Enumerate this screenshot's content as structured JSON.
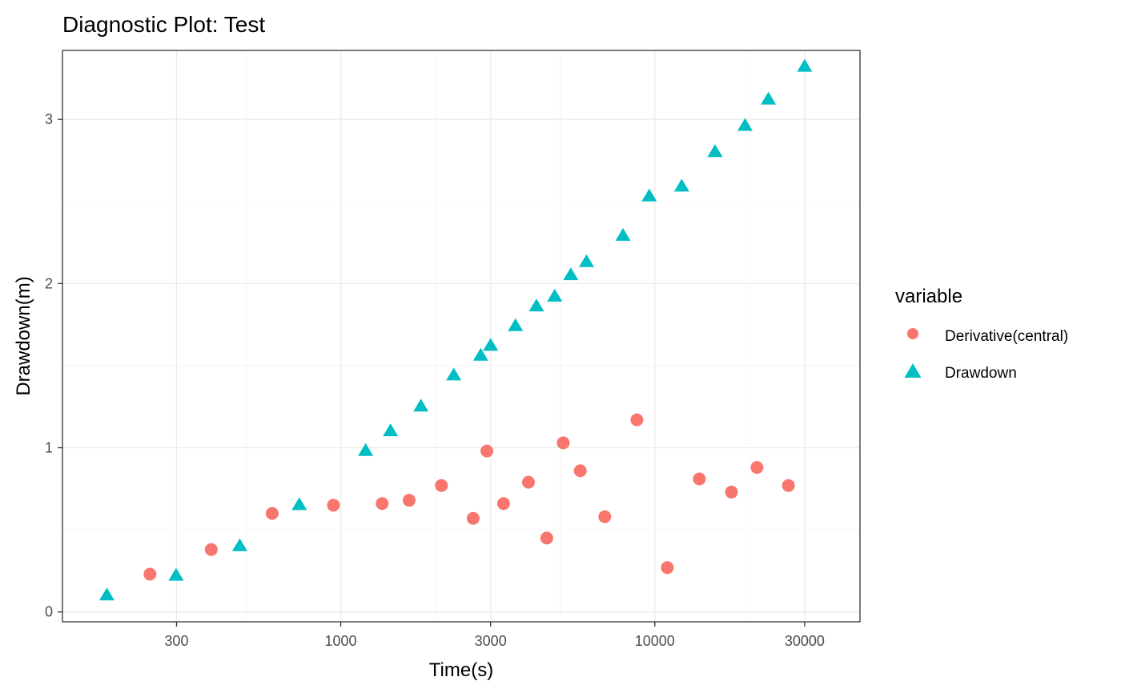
{
  "chart_data": {
    "type": "scatter",
    "title": "Diagnostic Plot: Test",
    "xlabel": "Time(s)",
    "ylabel": "Drawdown(m)",
    "xscale": "log",
    "xlim": [
      130,
      45000
    ],
    "ylim": [
      -0.06,
      3.42
    ],
    "x_ticks": [
      300,
      1000,
      3000,
      10000,
      30000
    ],
    "x_tick_labels": [
      "300",
      "1000",
      "3000",
      "10000",
      "30000"
    ],
    "y_ticks": [
      0,
      1,
      2,
      3
    ],
    "y_tick_labels": [
      "0",
      "1",
      "2",
      "3"
    ],
    "x_minor_ticks": [
      500,
      2000,
      5000,
      20000
    ],
    "y_minor_ticks": [
      0.5,
      1.5,
      2.5
    ],
    "grid": true,
    "legend": {
      "title": "variable",
      "position": "right"
    },
    "series": [
      {
        "name": "Derivative(central)",
        "marker": "circle",
        "color": "#F8766D",
        "points": [
          [
            247,
            0.23
          ],
          [
            387,
            0.38
          ],
          [
            605,
            0.6
          ],
          [
            948,
            0.65
          ],
          [
            1355,
            0.66
          ],
          [
            1651,
            0.68
          ],
          [
            2092,
            0.77
          ],
          [
            2640,
            0.57
          ],
          [
            2919,
            0.98
          ],
          [
            3300,
            0.66
          ],
          [
            3960,
            0.79
          ],
          [
            4530,
            0.45
          ],
          [
            5110,
            1.03
          ],
          [
            5790,
            0.86
          ],
          [
            6930,
            0.58
          ],
          [
            8770,
            1.17
          ],
          [
            10960,
            0.27
          ],
          [
            13860,
            0.81
          ],
          [
            17540,
            0.73
          ],
          [
            21150,
            0.88
          ],
          [
            26630,
            0.77
          ]
        ]
      },
      {
        "name": "Drawdown",
        "marker": "triangle",
        "color": "#00BFC4",
        "points": [
          [
            180,
            0.1
          ],
          [
            299,
            0.22
          ],
          [
            477,
            0.4
          ],
          [
            738,
            0.65
          ],
          [
            1200,
            0.98
          ],
          [
            1440,
            1.1
          ],
          [
            1800,
            1.25
          ],
          [
            2290,
            1.44
          ],
          [
            2790,
            1.56
          ],
          [
            3000,
            1.62
          ],
          [
            3600,
            1.74
          ],
          [
            4200,
            1.86
          ],
          [
            4800,
            1.92
          ],
          [
            5400,
            2.05
          ],
          [
            6060,
            2.13
          ],
          [
            7920,
            2.29
          ],
          [
            9600,
            2.53
          ],
          [
            12180,
            2.59
          ],
          [
            15550,
            2.8
          ],
          [
            19380,
            2.96
          ],
          [
            23000,
            3.12
          ],
          [
            30000,
            3.32
          ]
        ]
      }
    ]
  }
}
